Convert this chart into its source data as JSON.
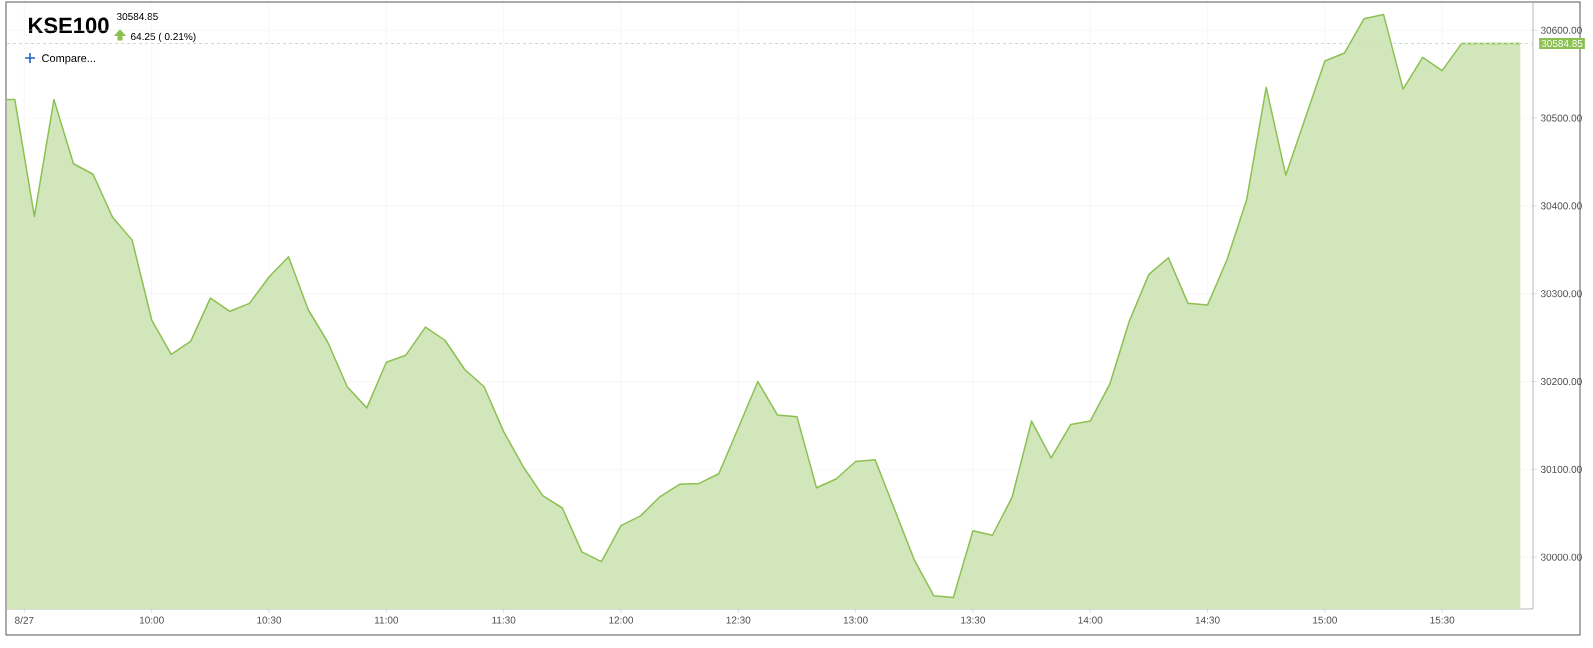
{
  "chart_data": {
    "type": "area",
    "title": "KSE100",
    "subtitle": "30584.85",
    "annotations": [
      "64.25 ( 0.21%)",
      "Compare..."
    ],
    "x": [
      9.3833,
      9.4167,
      9.5,
      9.5833,
      9.6667,
      9.75,
      9.8333,
      9.9167,
      10.0,
      10.0833,
      10.1667,
      10.25,
      10.3333,
      10.4167,
      10.5,
      10.5833,
      10.6667,
      10.75,
      10.8333,
      10.9167,
      11.0,
      11.0833,
      11.1667,
      11.25,
      11.3333,
      11.4167,
      11.5,
      11.5833,
      11.6667,
      11.75,
      11.8333,
      11.9167,
      12.0,
      12.0833,
      12.1667,
      12.25,
      12.3333,
      12.4167,
      12.5,
      12.5833,
      12.6667,
      12.75,
      12.8333,
      12.9167,
      13.0,
      13.0833,
      13.1667,
      13.25,
      13.3333,
      13.4167,
      13.5,
      13.5833,
      13.6667,
      13.75,
      13.8333,
      13.9167,
      14.0,
      14.0833,
      14.1667,
      14.25,
      14.3333,
      14.4167,
      14.5,
      14.5833,
      14.6667,
      14.75,
      14.8333,
      14.9167,
      15.0,
      15.0833,
      15.1667,
      15.25,
      15.3333,
      15.4167,
      15.5,
      15.5833,
      15.6667,
      15.75,
      15.8333
    ],
    "series": [
      {
        "color": "#8cc152",
        "values": [
          30521,
          30521,
          30388,
          30521,
          30448,
          30436,
          30387,
          30361,
          30270,
          30231,
          30246,
          30295,
          30280,
          30289,
          30319,
          30342,
          30282,
          30245,
          30194,
          30170,
          30222,
          30230,
          30262,
          30247,
          30214,
          30194,
          30143,
          30103,
          30070,
          30056,
          30006,
          29995,
          30036,
          30047,
          30069,
          30083,
          30084,
          30095,
          30147,
          30200,
          30162,
          30160,
          30079,
          30089,
          30109,
          30111,
          30054,
          29997,
          29956,
          29954,
          30030,
          30025,
          30068,
          30155,
          30113,
          30151,
          30155,
          30197,
          30269,
          30322,
          30341,
          30289,
          30287,
          30339,
          30407,
          30535,
          30435,
          30500,
          30565,
          30574,
          30613,
          30618,
          30533,
          30569,
          30554,
          30585,
          30585,
          30585,
          30584.85
        ]
      }
    ],
    "xlim": [
      9.3833,
      15.887
    ],
    "ylim": [
      29941,
      30631
    ],
    "xticks": [
      {
        "value": 9.457,
        "label": "8/27"
      },
      {
        "value": 10,
        "label": "10:00"
      },
      {
        "value": 10.5,
        "label": "10:30"
      },
      {
        "value": 11,
        "label": "11:00"
      },
      {
        "value": 11.5,
        "label": "11:30"
      },
      {
        "value": 12,
        "label": "12:00"
      },
      {
        "value": 12.5,
        "label": "12:30"
      },
      {
        "value": 13,
        "label": "13:00"
      },
      {
        "value": 13.5,
        "label": "13:30"
      },
      {
        "value": 14,
        "label": "14:00"
      },
      {
        "value": 14.5,
        "label": "14:30"
      },
      {
        "value": 15,
        "label": "15:00"
      },
      {
        "value": 15.5,
        "label": "15:30"
      }
    ],
    "yticks": [
      {
        "value": 30000,
        "label": "30000.00"
      },
      {
        "value": 30100,
        "label": "30100.00"
      },
      {
        "value": 30200,
        "label": "30200.00"
      },
      {
        "value": 30300,
        "label": "30300.00"
      },
      {
        "value": 30400,
        "label": "30400.00"
      },
      {
        "value": 30500,
        "label": "30500.00"
      },
      {
        "value": 30600,
        "label": "30600.00"
      }
    ],
    "ref_lines": [
      {
        "axis": "y",
        "value": 30584.85,
        "label": "30584.85",
        "color": "#cfdcc4",
        "line_style": "dashed"
      }
    ],
    "grid": true,
    "marker": "none",
    "line_style": "solid"
  }
}
